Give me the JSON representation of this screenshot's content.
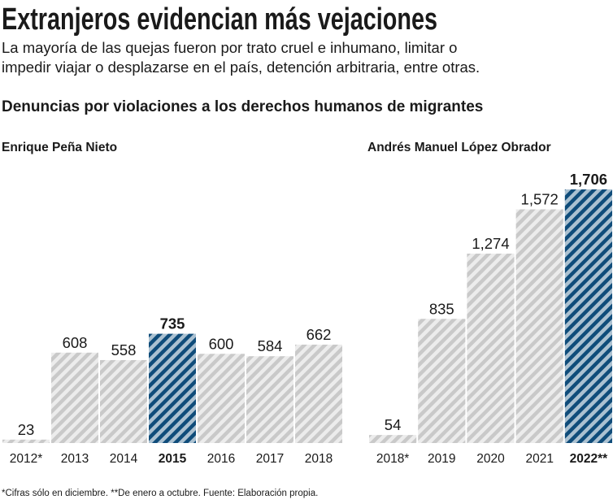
{
  "header": {
    "title": "Extranjeros evidencian más vejaciones",
    "subtitle": [
      "La mayoría de las quejas  fueron por trato cruel e inhumano, limitar o",
      "impedir viajar o desplazarse en el país, detención arbitraria, entre otras."
    ],
    "heading": "Denuncias por violaciones a los derechos humanos de migrantes"
  },
  "footnote": "*Cifras sólo en diciembre. **De enero a octubre. Fuente: Elaboración propia.",
  "chart_data": [
    {
      "type": "bar",
      "subtitle": "Enrique Peña Nieto",
      "categories": [
        "2012*",
        "2013",
        "2014",
        "2015",
        "2016",
        "2017",
        "2018"
      ],
      "values": [
        23,
        608,
        558,
        735,
        600,
        584,
        662
      ],
      "color": "#c9c9c9",
      "colors": [
        "#c9c9c9",
        "#c9c9c9",
        "#c9c9c9",
        "#0f4c7a",
        "#c9c9c9",
        "#c9c9c9",
        "#c9c9c9"
      ],
      "ylim": [
        0,
        1706
      ]
    },
    {
      "type": "bar",
      "subtitle": "Andrés Manuel López Obrador",
      "categories": [
        "2018*",
        "2019",
        "2020",
        "2021",
        "2022**"
      ],
      "values": [
        54,
        835,
        1274,
        1572,
        1706
      ],
      "value_labels": [
        "54",
        "835",
        "1,274",
        "1,572",
        "1,706"
      ],
      "color": "#c9c9c9",
      "colors": [
        "#c9c9c9",
        "#c9c9c9",
        "#c9c9c9",
        "#c9c9c9",
        "#0f4c7a"
      ],
      "ylim": [
        0,
        1706
      ]
    }
  ]
}
